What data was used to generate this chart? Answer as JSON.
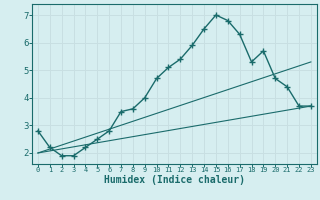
{
  "title": "",
  "xlabel": "Humidex (Indice chaleur)",
  "ylabel": "",
  "bg_color": "#d6eef0",
  "grid_color": "#c8dfe2",
  "line_color": "#1a6b6b",
  "xlim": [
    -0.5,
    23.5
  ],
  "ylim": [
    1.6,
    7.4
  ],
  "xticks": [
    0,
    1,
    2,
    3,
    4,
    5,
    6,
    7,
    8,
    9,
    10,
    11,
    12,
    13,
    14,
    15,
    16,
    17,
    18,
    19,
    20,
    21,
    22,
    23
  ],
  "yticks": [
    2,
    3,
    4,
    5,
    6,
    7
  ],
  "line1_x": [
    0,
    1,
    2,
    3,
    4,
    5,
    6,
    7,
    8,
    9,
    10,
    11,
    12,
    13,
    14,
    15,
    16,
    17,
    18,
    19,
    20,
    21,
    22,
    23
  ],
  "line1_y": [
    2.8,
    2.2,
    1.9,
    1.9,
    2.2,
    2.5,
    2.8,
    3.5,
    3.6,
    4.0,
    4.7,
    5.1,
    5.4,
    5.9,
    6.5,
    7.0,
    6.8,
    6.3,
    5.3,
    5.7,
    4.7,
    4.4,
    3.7,
    3.7
  ],
  "line2_x": [
    0,
    23
  ],
  "line2_y": [
    2.0,
    3.7
  ],
  "line3_x": [
    0,
    23
  ],
  "line3_y": [
    2.0,
    5.3
  ]
}
